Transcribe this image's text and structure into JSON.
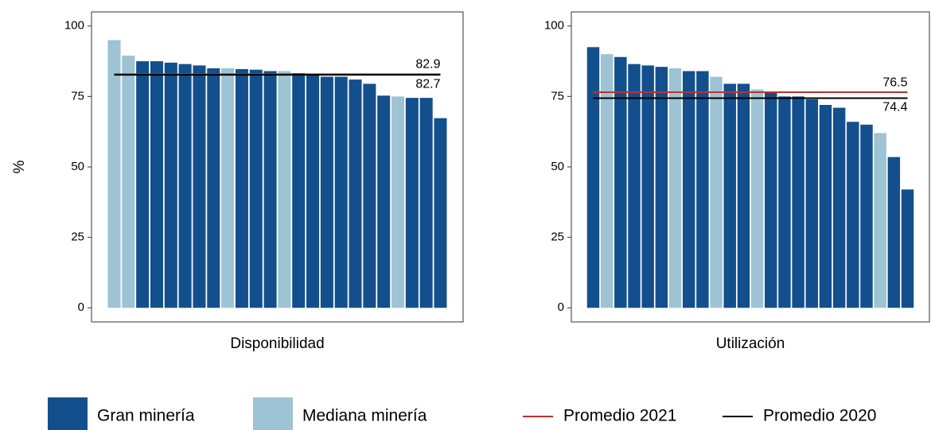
{
  "chart_data": [
    {
      "type": "bar",
      "xlabel": "Disponibilidad",
      "ylabel": "%",
      "values": [
        95,
        89.5,
        87.5,
        87.5,
        87,
        86.5,
        86,
        85,
        85,
        84.7,
        84.5,
        84,
        84,
        83.3,
        82.5,
        82,
        82,
        81,
        79.5,
        75.3,
        75,
        74.5,
        74.5,
        67.3
      ],
      "colors": [
        "#9dc3d4",
        "#9dc3d4",
        "#134f8c",
        "#134f8c",
        "#134f8c",
        "#134f8c",
        "#134f8c",
        "#134f8c",
        "#9dc3d4",
        "#134f8c",
        "#134f8c",
        "#134f8c",
        "#9dc3d4",
        "#134f8c",
        "#134f8c",
        "#134f8c",
        "#134f8c",
        "#134f8c",
        "#134f8c",
        "#134f8c",
        "#9dc3d4",
        "#134f8c",
        "#134f8c",
        "#134f8c"
      ],
      "reference_lines": [
        {
          "value": 82.9,
          "color": "#c0312b"
        },
        {
          "value": 82.7,
          "color": "#000000"
        }
      ],
      "ylim": [
        -5,
        105
      ],
      "yticks": [
        0,
        25,
        50,
        75,
        100
      ]
    },
    {
      "type": "bar",
      "xlabel": "Utilización",
      "values": [
        92.5,
        90,
        89,
        86.5,
        86,
        85.5,
        85,
        84,
        84,
        82,
        79.5,
        79.5,
        77.5,
        76.5,
        75,
        75,
        74,
        72,
        71,
        66,
        65,
        62,
        53.5,
        42
      ],
      "colors": [
        "#134f8c",
        "#9dc3d4",
        "#134f8c",
        "#134f8c",
        "#134f8c",
        "#134f8c",
        "#9dc3d4",
        "#134f8c",
        "#134f8c",
        "#9dc3d4",
        "#134f8c",
        "#134f8c",
        "#9dc3d4",
        "#134f8c",
        "#134f8c",
        "#134f8c",
        "#134f8c",
        "#134f8c",
        "#134f8c",
        "#134f8c",
        "#134f8c",
        "#9dc3d4",
        "#134f8c",
        "#134f8c"
      ],
      "reference_lines": [
        {
          "value": 76.5,
          "color": "#c0312b"
        },
        {
          "value": 74.4,
          "color": "#000000"
        }
      ],
      "ylim": [
        -5,
        105
      ],
      "yticks": [
        0,
        25,
        50,
        75,
        100
      ]
    }
  ],
  "legend": {
    "bars": [
      {
        "name": "Gran minería",
        "color": "#134f8c"
      },
      {
        "name": "Mediana minería",
        "color": "#9dc3d4"
      }
    ],
    "lines": [
      {
        "name": "Promedio 2021",
        "color": "#c0312b"
      },
      {
        "name": "Promedio 2020",
        "color": "#000000"
      }
    ]
  }
}
